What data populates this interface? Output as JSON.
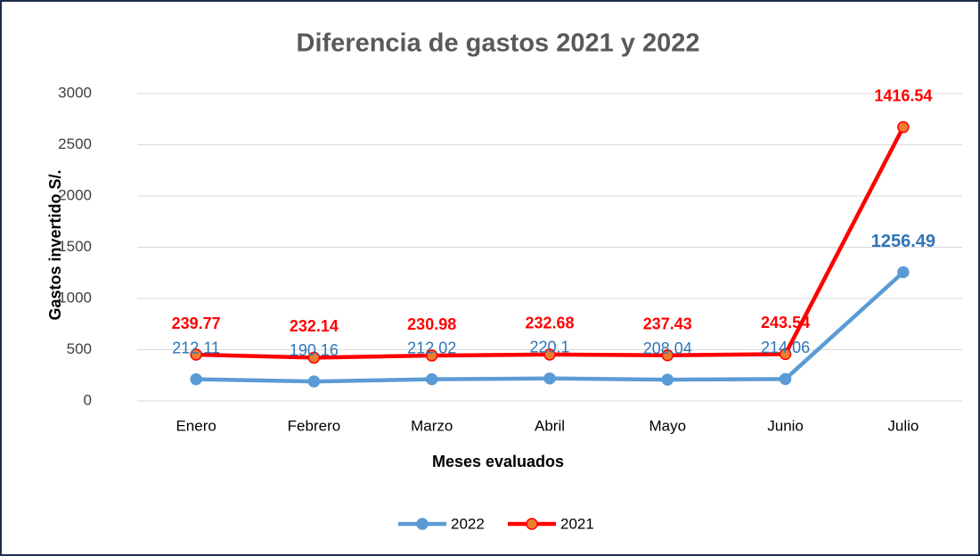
{
  "chart_data": {
    "type": "line",
    "stacked": true,
    "title": "Diferencia de gastos 2021 y 2022",
    "x_label": "Meses evaluados",
    "y_label": "Gastos  invertido S/.",
    "categories": [
      "Enero",
      "Febrero",
      "Marzo",
      "Abril",
      "Mayo",
      "Junio",
      "Julio"
    ],
    "series": [
      {
        "name": "2022",
        "color": "#5b9bd5",
        "marker_color": "#5b9bd5",
        "values": [
          212.11,
          190.16,
          212.02,
          220.1,
          208.04,
          214.06,
          1256.49
        ]
      },
      {
        "name": "2021",
        "color": "#ff0000",
        "marker_color": "#ed7d31",
        "values": [
          239.77,
          232.14,
          230.98,
          232.68,
          237.43,
          243.54,
          1416.54
        ]
      }
    ],
    "ylim": [
      0,
      3000
    ],
    "yticks": [
      0,
      500,
      1000,
      1500,
      2000,
      2500,
      3000
    ],
    "grid": true,
    "legend": "bottom"
  }
}
